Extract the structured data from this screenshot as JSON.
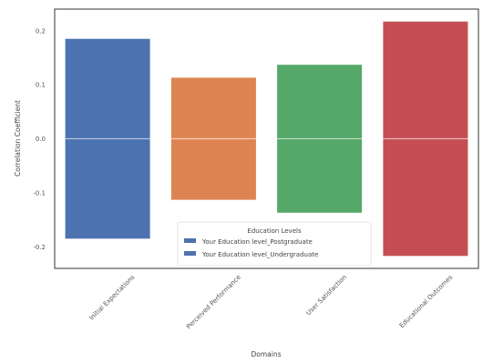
{
  "chart_data": {
    "type": "bar",
    "title": "",
    "xlabel": "Domains",
    "ylabel": "Correlation Coefficient",
    "categories": [
      "Initial Expectations",
      "Perceived Performance",
      "User Satisfaction",
      "Educational Outcomes"
    ],
    "bar_colors": [
      "#4c72b0",
      "#dd8452",
      "#55a868",
      "#c44e52"
    ],
    "series": [
      {
        "name": "Your Education level_Postgraduate",
        "values": [
          0.185,
          0.113,
          0.137,
          0.217
        ]
      },
      {
        "name": "Your Education level_Undergraduate",
        "values": [
          -0.185,
          -0.113,
          -0.137,
          -0.217
        ]
      }
    ],
    "ylim": [
      -0.24,
      0.24
    ],
    "yticks": [
      "0.2",
      "0.1",
      "0.0",
      "-0.1",
      "-0.2"
    ],
    "ytick_values": [
      0.2,
      0.1,
      0.0,
      -0.1,
      -0.2
    ],
    "grid": false,
    "legend": {
      "title": "Education Levels",
      "placement": "lower-center",
      "colors": [
        "#4c72b0",
        "#4c72b0"
      ]
    }
  }
}
